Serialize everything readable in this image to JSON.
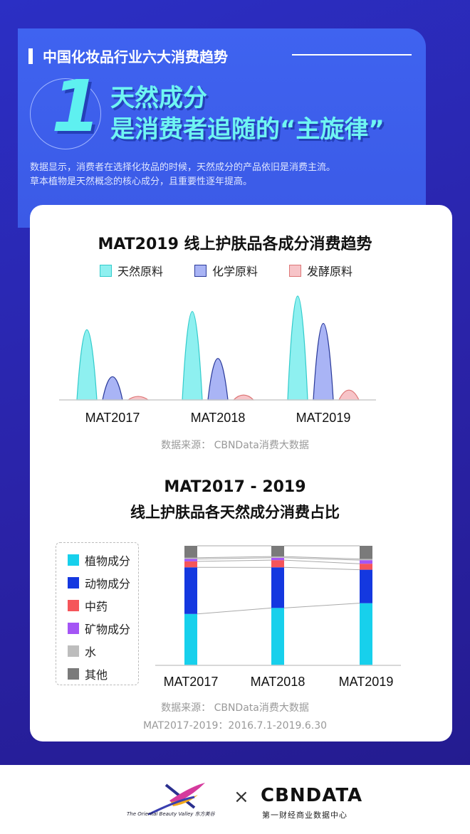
{
  "header": {
    "section_title": "中国化妆品行业六大消费趋势",
    "number": "1",
    "headline_line1": "天然成分",
    "headline_line2": "是消费者追随的“主旋律”",
    "desc_line1": "数据显示，消费者在选择化妆品的时候，天然成分的产品依旧是消费主流。",
    "desc_line2": "草本植物是天然概念的核心成分，且重要性逐年提高。"
  },
  "chart_data": [
    {
      "type": "area",
      "title": "MAT2019 线上护肤品各成分消费趋势",
      "categories": [
        "MAT2017",
        "MAT2018",
        "MAT2019"
      ],
      "series": [
        {
          "name": "天然原料",
          "values": [
            100,
            126,
            148
          ],
          "color": "#8ef0f0"
        },
        {
          "name": "化学原料",
          "values": [
            33,
            59,
            109
          ],
          "color": "#a9b4f5"
        },
        {
          "name": "发酵原料",
          "values": [
            5,
            7,
            14
          ],
          "color": "#f7c4c8"
        }
      ],
      "ylim": [
        0,
        150
      ],
      "grid": false,
      "legend": "top",
      "source": "数据来源： CBNData消费大数据"
    },
    {
      "type": "bar",
      "stacked": true,
      "title_line1": "MAT2017 - 2019",
      "title_line2": "线上护肤品各天然成分消费占比",
      "categories": [
        "MAT2017",
        "MAT2018",
        "MAT2019"
      ],
      "series": [
        {
          "name": "植物成分",
          "values": [
            43,
            48,
            52
          ],
          "color": "#17d0ec"
        },
        {
          "name": "动物成分",
          "values": [
            39,
            34,
            28
          ],
          "color": "#1438e0"
        },
        {
          "name": "中药",
          "values": [
            5,
            6,
            5
          ],
          "color": "#f5555a"
        },
        {
          "name": "矿物成分",
          "values": [
            2,
            2,
            3
          ],
          "color": "#a455f5"
        },
        {
          "name": "水",
          "values": [
            1,
            1,
            1
          ],
          "color": "#bdbdbd"
        },
        {
          "name": "其他",
          "values": [
            10,
            9,
            11
          ],
          "color": "#7a7a7a"
        }
      ],
      "ylim": [
        0,
        100
      ],
      "unit": "%",
      "legend": "left",
      "source": "数据来源： CBNData消费大数据",
      "note": "MAT2017-2019：2016.7.1-2019.6.30"
    }
  ],
  "footer": {
    "partner_tagline": "The Oriental Beauty Valley 东方美谷",
    "times": "×",
    "brand": "CBNDATA",
    "brand_sub": "第一财经商业数据中心"
  }
}
